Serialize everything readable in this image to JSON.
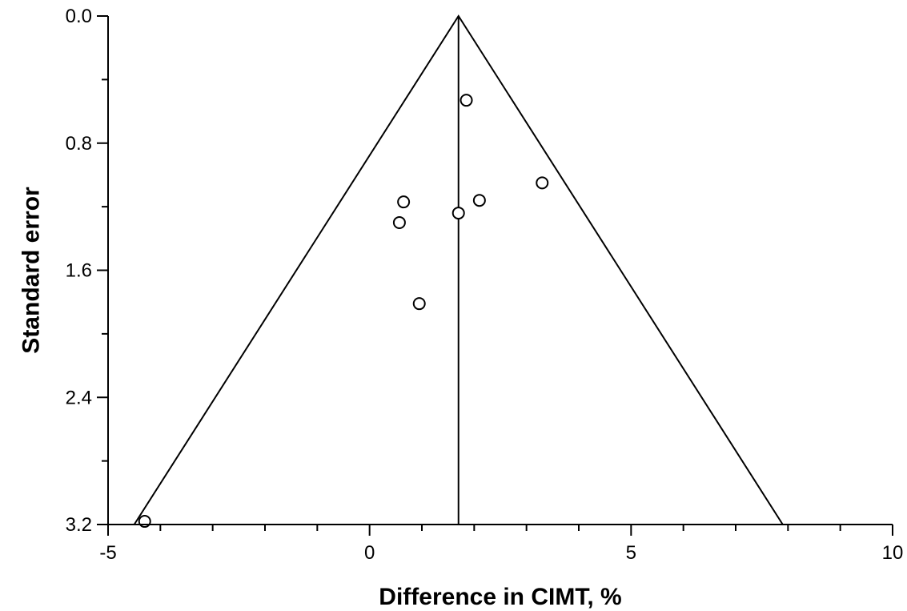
{
  "chart_data": {
    "type": "scatter",
    "title": "",
    "xlabel": "Difference in CIMT, %",
    "ylabel": "Standard error",
    "xlim": [
      -5,
      10
    ],
    "ylim": [
      0.0,
      3.2
    ],
    "y_inverted": true,
    "x_major_ticks": [
      -5,
      0,
      5,
      10
    ],
    "x_tick_labels": [
      "-5",
      "0",
      "5",
      "10"
    ],
    "x_minor_step": 1,
    "y_major_ticks": [
      0.0,
      0.8,
      1.6,
      2.4,
      3.2
    ],
    "y_tick_labels": [
      "0.0",
      "0.8",
      "1.6",
      "2.4",
      "3.2"
    ],
    "y_minor_step": 0.4,
    "pooled_estimate": 1.7,
    "funnel_apex": [
      1.7,
      0.0
    ],
    "funnel_base": [
      [
        -4.5,
        3.2
      ],
      [
        7.9,
        3.2
      ]
    ],
    "points": [
      {
        "x": 1.85,
        "y": 0.53
      },
      {
        "x": 3.3,
        "y": 1.05
      },
      {
        "x": 2.1,
        "y": 1.16
      },
      {
        "x": 0.65,
        "y": 1.17
      },
      {
        "x": 1.7,
        "y": 1.24
      },
      {
        "x": 0.57,
        "y": 1.3
      },
      {
        "x": 0.95,
        "y": 1.81
      },
      {
        "x": -4.3,
        "y": 3.18
      }
    ],
    "grid": false,
    "legend": "none"
  }
}
